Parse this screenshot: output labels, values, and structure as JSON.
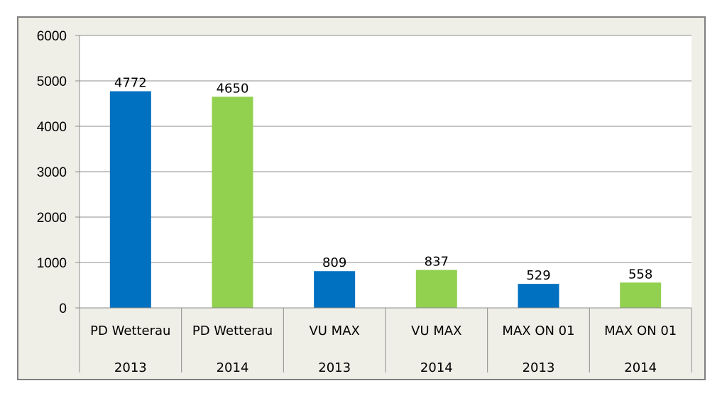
{
  "chart_data": {
    "type": "bar",
    "title": "",
    "xlabel": "",
    "ylabel": "",
    "ylim": [
      0,
      6000
    ],
    "yticks": [
      0,
      1000,
      2000,
      3000,
      4000,
      5000,
      6000
    ],
    "grid": true,
    "legend": "none",
    "categories": [
      [
        "PD Wetterau",
        "2013"
      ],
      [
        "PD Wetterau",
        "2014"
      ],
      [
        "VU MAX",
        "2013"
      ],
      [
        "VU MAX",
        "2014"
      ],
      [
        "MAX ON 01",
        "2013"
      ],
      [
        "MAX ON 01",
        "2014"
      ]
    ],
    "values": [
      4772,
      4650,
      809,
      837,
      529,
      558
    ],
    "data_labels": [
      "4772",
      "4650",
      "809",
      "837",
      "529",
      "558"
    ],
    "colors": [
      "#0070c0",
      "#92d050",
      "#0070c0",
      "#92d050",
      "#0070c0",
      "#92d050"
    ],
    "plot_background": "#ffffff",
    "frame_background": "#f0efe7"
  }
}
